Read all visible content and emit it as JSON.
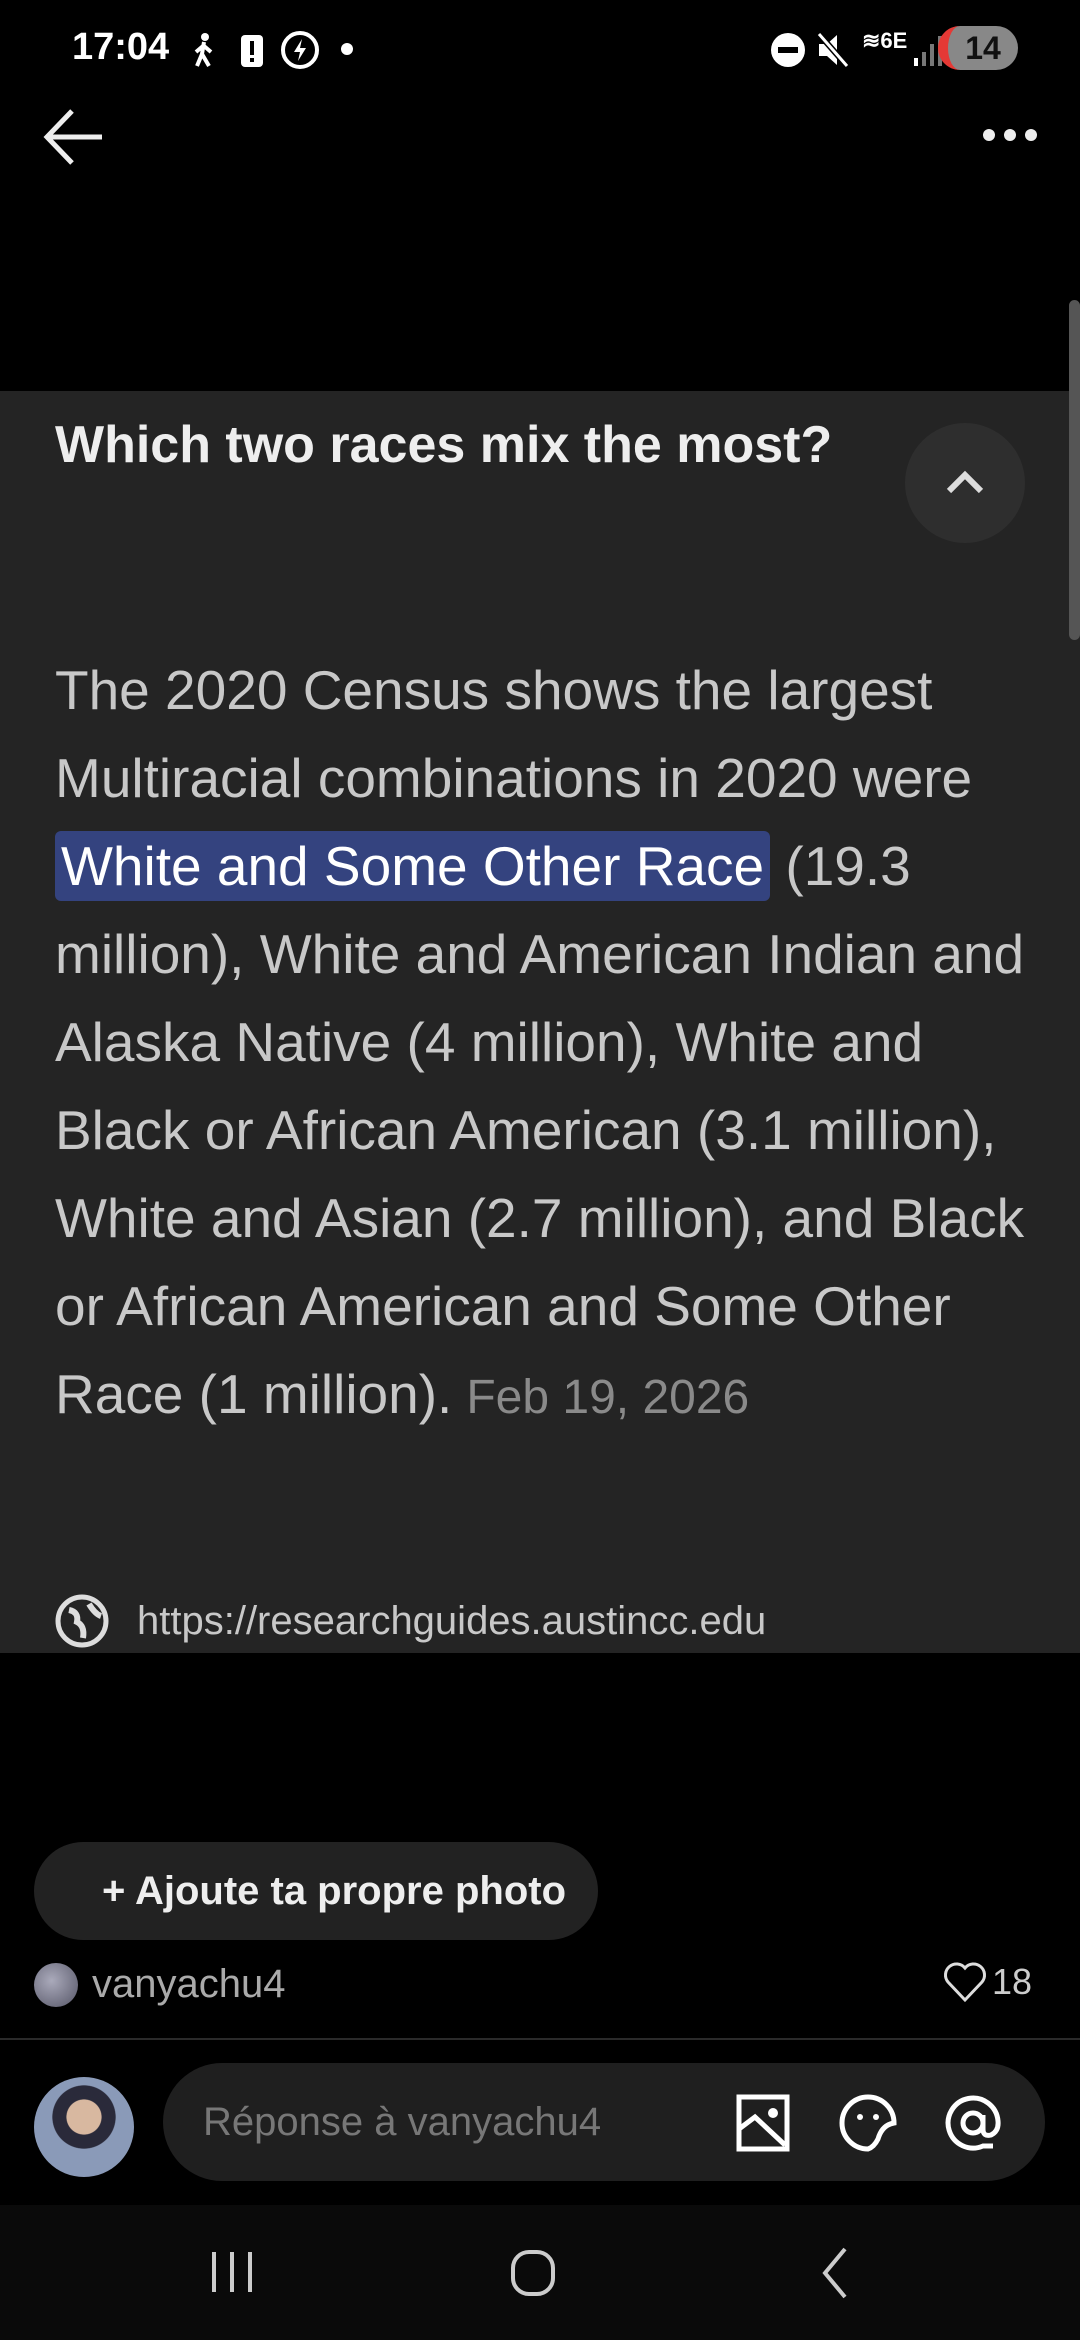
{
  "status_bar": {
    "time": "17:04",
    "battery": "14",
    "icons": [
      "walk-icon",
      "battery-alert-icon",
      "power-saving-icon",
      "dot-icon",
      "do-not-disturb-icon",
      "mute-icon",
      "wifi-6e-icon",
      "signal-icon"
    ]
  },
  "header": {
    "back_icon": "arrow-left-icon",
    "more_icon": "more-horizontal-icon"
  },
  "card": {
    "title": "Which two races mix the most?",
    "body_before": "The 2020 Census shows the largest Multiracial combinations in 2020 were ",
    "highlight": "White and Some Other Race",
    "body_after": " (19.3 million), White and American Indian and Alaska Native (4 million), White and Black or African American (3.1 million), White and Asian (2.7 million), and Black or African American and Some Other Race (1 million).",
    "date": "Feb 19, 2026",
    "source_url": "https://researchguides.austincc.edu",
    "highlight_color": "#34437f"
  },
  "add_photo_label": "+ Ajoute ta propre photo",
  "post": {
    "username": "vanyachu4",
    "likes": "18"
  },
  "reply": {
    "placeholder": "Réponse à vanyachu4"
  }
}
